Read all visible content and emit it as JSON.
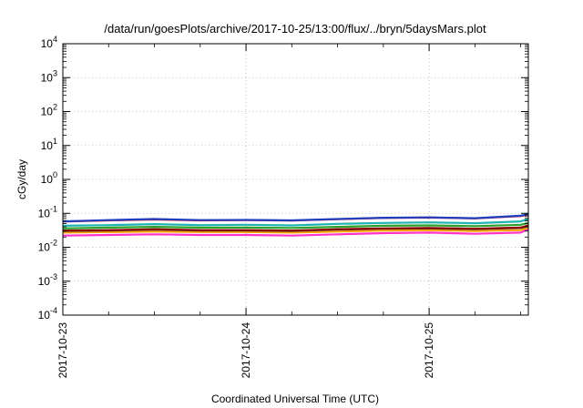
{
  "chart_data": {
    "type": "line",
    "title": "/data/run/goesPlots/archive/2017-10-25/13:00/flux/../bryn/5daysMars.plot",
    "xlabel": "Coordinated Universal Time (UTC)",
    "ylabel": "cGy/day",
    "yscale": "log",
    "ylim": [
      0.0001,
      10000
    ],
    "xlim": [
      "2017-10-23T00:00",
      "2017-10-25T13:00"
    ],
    "x_tick_labels": [
      "2017-10-23",
      "2017-10-24",
      "2017-10-25"
    ],
    "y_tick_labels": [
      {
        "base": "10",
        "exp": "-4"
      },
      {
        "base": "10",
        "exp": "-3"
      },
      {
        "base": "10",
        "exp": "-2"
      },
      {
        "base": "10",
        "exp": "-1"
      },
      {
        "base": "10",
        "exp": "0"
      },
      {
        "base": "10",
        "exp": "1"
      },
      {
        "base": "10",
        "exp": "2"
      },
      {
        "base": "10",
        "exp": "3"
      },
      {
        "base": "10",
        "exp": "4"
      }
    ],
    "grid": true,
    "x": [
      "2017-10-23T00:00",
      "2017-10-23T06:00",
      "2017-10-23T12:00",
      "2017-10-23T18:00",
      "2017-10-24T00:00",
      "2017-10-24T06:00",
      "2017-10-24T12:00",
      "2017-10-24T18:00",
      "2017-10-25T00:00",
      "2017-10-25T06:00",
      "2017-10-25T12:00",
      "2017-10-25T13:00"
    ],
    "series": [
      {
        "color": "#1f3fbf",
        "values": [
          0.058,
          0.063,
          0.068,
          0.063,
          0.064,
          0.062,
          0.068,
          0.074,
          0.076,
          0.072,
          0.085,
          0.095
        ]
      },
      {
        "color": "#e8243c",
        "values": [
          0.057,
          0.062,
          0.066,
          0.062,
          0.063,
          0.061,
          0.067,
          0.073,
          0.075,
          0.071,
          0.083,
          0.093
        ]
      },
      {
        "color": "#1fb3b3",
        "values": [
          0.043,
          0.045,
          0.048,
          0.045,
          0.046,
          0.044,
          0.049,
          0.052,
          0.054,
          0.051,
          0.058,
          0.068
        ]
      },
      {
        "color": "#2ca02c",
        "values": [
          0.036,
          0.038,
          0.04,
          0.038,
          0.038,
          0.037,
          0.04,
          0.043,
          0.044,
          0.042,
          0.046,
          0.052
        ]
      },
      {
        "color": "#8b0000",
        "values": [
          0.031,
          0.032,
          0.034,
          0.032,
          0.032,
          0.031,
          0.034,
          0.036,
          0.037,
          0.035,
          0.038,
          0.044
        ]
      },
      {
        "color": "#505050",
        "values": [
          0.03,
          0.031,
          0.033,
          0.031,
          0.031,
          0.03,
          0.033,
          0.035,
          0.036,
          0.034,
          0.037,
          0.042
        ]
      },
      {
        "color": "#ffa500",
        "values": [
          0.027,
          0.028,
          0.029,
          0.028,
          0.028,
          0.027,
          0.029,
          0.031,
          0.032,
          0.03,
          0.032,
          0.038
        ]
      },
      {
        "color": "#ff33cc",
        "values": [
          0.022,
          0.023,
          0.024,
          0.023,
          0.023,
          0.022,
          0.024,
          0.026,
          0.027,
          0.025,
          0.027,
          0.034
        ]
      }
    ]
  }
}
